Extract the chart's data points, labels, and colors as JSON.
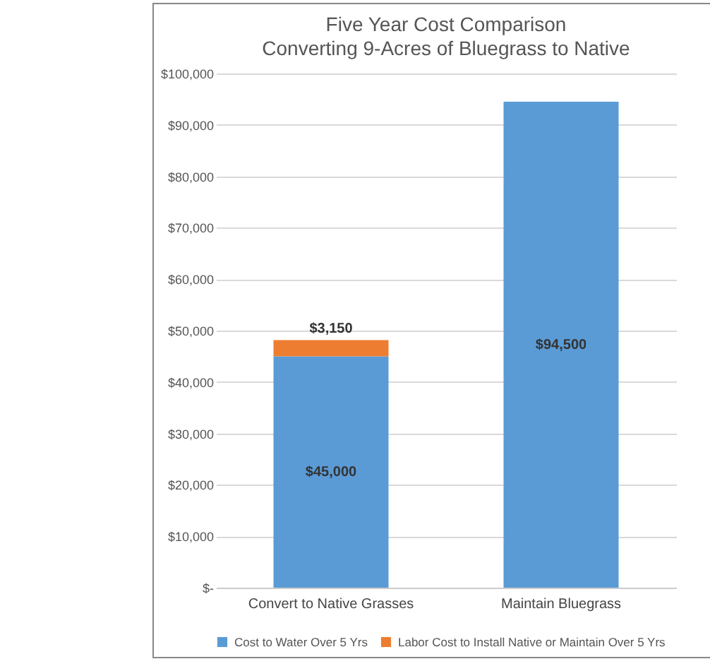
{
  "chart_data": {
    "type": "bar",
    "title": "Five Year Cost Comparison",
    "subtitle": "Converting 9-Acres of Bluegrass to Native",
    "categories": [
      "Convert  to Native Grasses",
      "Maintain Bluegrass"
    ],
    "stacked": true,
    "series": [
      {
        "name": "Cost to Water Over 5 Yrs",
        "color": "#5b9bd5",
        "values": [
          45000,
          94500
        ],
        "value_labels": [
          "$45,000",
          "$94,500"
        ]
      },
      {
        "name": "Labor Cost to Install Native or Maintain Over 5 Yrs",
        "color": "#ed7d31",
        "values": [
          3150,
          null
        ],
        "value_labels": [
          "$3,150",
          null
        ]
      }
    ],
    "ylim": [
      0,
      100000
    ],
    "yticks": [
      {
        "value": 0,
        "label": "$-"
      },
      {
        "value": 10000,
        "label": "$10,000"
      },
      {
        "value": 20000,
        "label": "$20,000"
      },
      {
        "value": 30000,
        "label": "$30,000"
      },
      {
        "value": 40000,
        "label": "$40,000"
      },
      {
        "value": 50000,
        "label": "$50,000"
      },
      {
        "value": 60000,
        "label": "$60,000"
      },
      {
        "value": 70000,
        "label": "$70,000"
      },
      {
        "value": 80000,
        "label": "$80,000"
      },
      {
        "value": 90000,
        "label": "$90,000"
      },
      {
        "value": 100000,
        "label": "$100,000"
      }
    ],
    "grid": "y",
    "legend": "bottom"
  }
}
